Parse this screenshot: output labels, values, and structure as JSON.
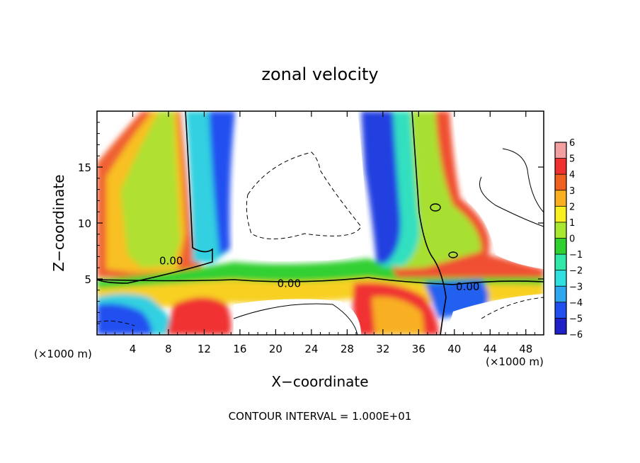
{
  "chart_data": {
    "type": "heatmap",
    "title": "zonal velocity",
    "xlabel": "X−coordinate",
    "ylabel": "Z−coordinate",
    "x_unit_left": "(×1000 m)",
    "x_unit_right": "(×1000 m)",
    "footer": "CONTOUR INTERVAL = 1.000E+01",
    "xlim": [
      0,
      50
    ],
    "ylim": [
      0,
      20
    ],
    "x_ticks": [
      4,
      8,
      12,
      16,
      20,
      24,
      28,
      32,
      36,
      40,
      44,
      48
    ],
    "x_tick_labels": [
      "4",
      "8",
      "12",
      "16",
      "20",
      "24",
      "28",
      "32",
      "36",
      "40",
      "44",
      "48"
    ],
    "y_ticks": [
      5,
      10,
      15
    ],
    "y_tick_labels": [
      "5",
      "10",
      "15"
    ],
    "contour_labels": [
      {
        "text": "0.00",
        "x": 8.3,
        "z": 6.6
      },
      {
        "text": "0.00",
        "x": 21.5,
        "z": 4.6
      },
      {
        "text": "0.00",
        "x": 41.5,
        "z": 4.3
      }
    ],
    "colorbar": {
      "levels": [
        6,
        5,
        4,
        3,
        2,
        1,
        0,
        -1,
        -2,
        -3,
        -4,
        -5,
        -6
      ],
      "labels": [
        "6",
        "5",
        "4",
        "3",
        "2",
        "1",
        "0",
        "−1",
        "−2",
        "−3",
        "−4",
        "−5",
        "−6"
      ],
      "colors": [
        "#f4a0a0",
        "#f03030",
        "#f06020",
        "#f8b020",
        "#f8f020",
        "#a8e830",
        "#30d030",
        "#30e8a8",
        "#30e0e0",
        "#30a8f0",
        "#2050f0",
        "#2020c8",
        "#7020a0"
      ]
    }
  }
}
